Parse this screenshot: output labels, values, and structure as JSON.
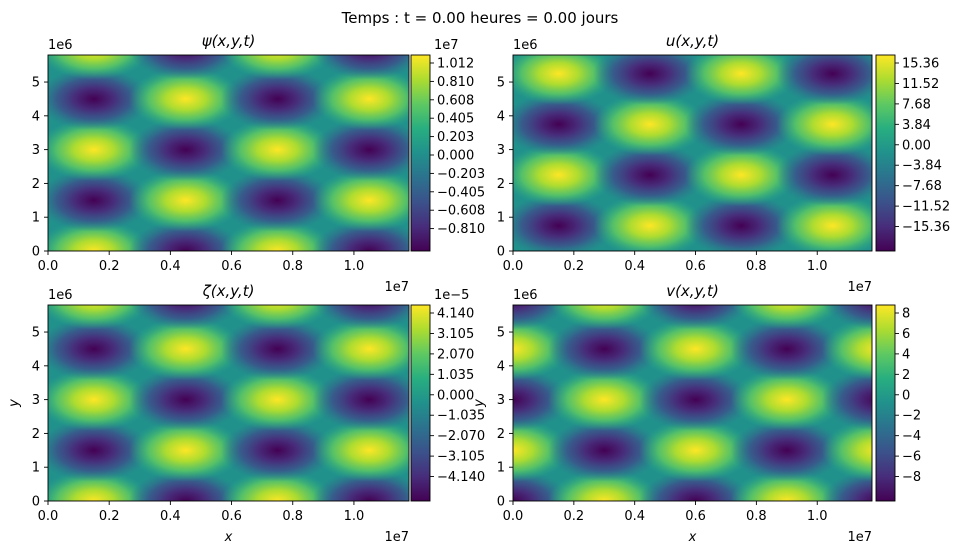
{
  "suptitle": "Temps : t = 0.00 heures = 0.00 jours",
  "colormap": [
    "#440154",
    "#472d7b",
    "#3b528b",
    "#2c728e",
    "#21918c",
    "#28ae80",
    "#5ec962",
    "#addc30",
    "#fde725"
  ],
  "chart_data": [
    {
      "type": "heatmap",
      "title": "ψ(x,y,t)",
      "field": "psi",
      "xlabel": "",
      "ylabel": "",
      "xlim": [
        0,
        11800000
      ],
      "ylim": [
        0,
        5800000
      ],
      "xticks": [
        "0.0",
        "0.2",
        "0.4",
        "0.6",
        "0.8",
        "1.0"
      ],
      "yticks": [
        "0",
        "1",
        "2",
        "3",
        "4",
        "5"
      ],
      "x_offset": "1e7",
      "y_offset": "1e6",
      "colorbar_ticks": [
        "1.012",
        "0.810",
        "0.608",
        "0.405",
        "0.203",
        "0.000",
        "−0.203",
        "−0.405",
        "−0.608",
        "−0.810"
      ],
      "colorbar_offset": "1e7",
      "vmin": -10120000,
      "vmax": 10120000,
      "peaks_x": [
        1500000,
        4500000,
        7500000,
        10500000
      ],
      "peaks_y": [
        0,
        1500000,
        3000000,
        4500000,
        6000000
      ]
    },
    {
      "type": "heatmap",
      "title": "u(x,y,t)",
      "field": "u",
      "xlabel": "",
      "ylabel": "",
      "xlim": [
        0,
        11800000
      ],
      "ylim": [
        0,
        5800000
      ],
      "xticks": [
        "0.0",
        "0.2",
        "0.4",
        "0.6",
        "0.8",
        "1.0"
      ],
      "yticks": [
        "0",
        "1",
        "2",
        "3",
        "4",
        "5"
      ],
      "x_offset": "1e7",
      "y_offset": "1e6",
      "colorbar_ticks": [
        "15.36",
        "11.52",
        "7.68",
        "3.84",
        "0.00",
        "−3.84",
        "−7.68",
        "−11.52",
        "−15.36"
      ],
      "colorbar_offset": "",
      "vmin": -19.2,
      "vmax": 19.2,
      "peaks_x": [
        1500000,
        4500000,
        7500000,
        10500000
      ],
      "peaks_y": [
        750000,
        2250000,
        3750000,
        5250000
      ]
    },
    {
      "type": "heatmap",
      "title": "ζ(x,y,t)",
      "field": "zeta",
      "xlabel": "x",
      "ylabel": "y",
      "xlim": [
        0,
        11800000
      ],
      "ylim": [
        0,
        5800000
      ],
      "xticks": [
        "0.0",
        "0.2",
        "0.4",
        "0.6",
        "0.8",
        "1.0"
      ],
      "yticks": [
        "0",
        "1",
        "2",
        "3",
        "4",
        "5"
      ],
      "x_offset": "1e7",
      "y_offset": "1e6",
      "colorbar_ticks": [
        "4.140",
        "3.105",
        "2.070",
        "1.035",
        "0.000",
        "−1.035",
        "−2.070",
        "−3.105",
        "−4.140"
      ],
      "colorbar_offset": "1e−5",
      "vmin": -5.15e-05,
      "vmax": 5.15e-05,
      "peaks_x": [
        1500000,
        4500000,
        7500000,
        10500000
      ],
      "peaks_y": [
        0,
        1500000,
        3000000,
        4500000,
        6000000
      ]
    },
    {
      "type": "heatmap",
      "title": "v(x,y,t)",
      "field": "v",
      "xlabel": "x",
      "ylabel": "y",
      "xlim": [
        0,
        11800000
      ],
      "ylim": [
        0,
        5800000
      ],
      "xticks": [
        "0.0",
        "0.2",
        "0.4",
        "0.6",
        "0.8",
        "1.0"
      ],
      "yticks": [
        "0",
        "1",
        "2",
        "3",
        "4",
        "5"
      ],
      "x_offset": "1e7",
      "y_offset": "1e6",
      "colorbar_ticks": [
        "8",
        "6",
        "4",
        "2",
        "0",
        "−2",
        "−4",
        "−6",
        "−8"
      ],
      "colorbar_offset": "",
      "vmin": -9.6,
      "vmax": 9.6,
      "peaks_x": [
        0,
        3000000,
        6000000,
        9000000,
        12000000
      ],
      "peaks_y": [
        0,
        1500000,
        3000000,
        4500000,
        6000000
      ]
    }
  ]
}
